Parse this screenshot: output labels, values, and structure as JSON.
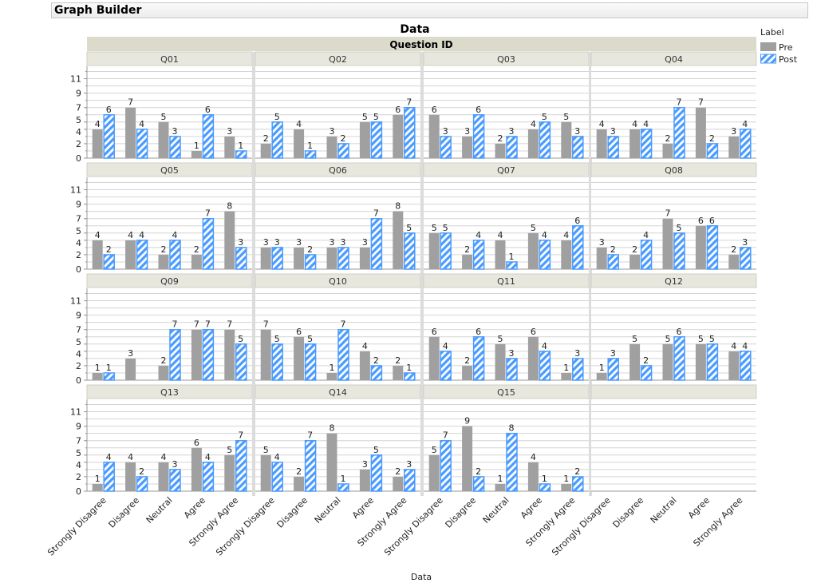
{
  "window": {
    "title": "Graph Builder"
  },
  "chart_data": {
    "type": "bar",
    "title": "Data",
    "group_header": "Question ID",
    "xlabel": "Data",
    "ylabel": "",
    "ylim": [
      0,
      12.5
    ],
    "yticks": [
      0,
      2,
      4,
      5,
      7,
      9,
      11
    ],
    "grid": true,
    "legend": {
      "title": "Label",
      "placement": "top-right",
      "entries": [
        "Pre",
        "Post"
      ]
    },
    "colors": {
      "pre": "#a0a0a0",
      "post": "#4a9bff"
    },
    "categories": [
      "Strongly Disagree",
      "Disagree",
      "Neutral",
      "Agree",
      "Strongly Agree"
    ],
    "panels": [
      {
        "name": "Q01",
        "series": [
          {
            "name": "Pre",
            "values": [
              4,
              7,
              5,
              1,
              3
            ]
          },
          {
            "name": "Post",
            "values": [
              6,
              4,
              3,
              6,
              1
            ]
          }
        ]
      },
      {
        "name": "Q02",
        "series": [
          {
            "name": "Pre",
            "values": [
              2,
              4,
              3,
              5,
              6
            ]
          },
          {
            "name": "Post",
            "values": [
              5,
              1,
              2,
              5,
              7
            ]
          }
        ]
      },
      {
        "name": "Q03",
        "series": [
          {
            "name": "Pre",
            "values": [
              6,
              3,
              2,
              4,
              5
            ]
          },
          {
            "name": "Post",
            "values": [
              3,
              6,
              3,
              5,
              3
            ]
          }
        ]
      },
      {
        "name": "Q04",
        "series": [
          {
            "name": "Pre",
            "values": [
              4,
              4,
              2,
              7,
              3
            ]
          },
          {
            "name": "Post",
            "values": [
              3,
              4,
              7,
              2,
              4
            ]
          }
        ]
      },
      {
        "name": "Q05",
        "series": [
          {
            "name": "Pre",
            "values": [
              4,
              4,
              2,
              2,
              8
            ]
          },
          {
            "name": "Post",
            "values": [
              2,
              4,
              4,
              7,
              3
            ]
          }
        ]
      },
      {
        "name": "Q06",
        "series": [
          {
            "name": "Pre",
            "values": [
              3,
              3,
              3,
              3,
              8
            ]
          },
          {
            "name": "Post",
            "values": [
              3,
              2,
              3,
              7,
              5
            ]
          }
        ]
      },
      {
        "name": "Q07",
        "series": [
          {
            "name": "Pre",
            "values": [
              5,
              2,
              4,
              5,
              4
            ]
          },
          {
            "name": "Post",
            "values": [
              5,
              4,
              1,
              4,
              6
            ]
          }
        ]
      },
      {
        "name": "Q08",
        "series": [
          {
            "name": "Pre",
            "values": [
              3,
              2,
              7,
              6,
              2
            ]
          },
          {
            "name": "Post",
            "values": [
              2,
              4,
              5,
              6,
              3
            ]
          }
        ]
      },
      {
        "name": "Q09",
        "series": [
          {
            "name": "Pre",
            "values": [
              1,
              3,
              2,
              7,
              7
            ]
          },
          {
            "name": "Post",
            "values": [
              1,
              null,
              7,
              7,
              5
            ]
          }
        ]
      },
      {
        "name": "Q10",
        "series": [
          {
            "name": "Pre",
            "values": [
              7,
              6,
              1,
              4,
              2
            ]
          },
          {
            "name": "Post",
            "values": [
              5,
              5,
              7,
              2,
              1
            ]
          }
        ]
      },
      {
        "name": "Q11",
        "series": [
          {
            "name": "Pre",
            "values": [
              6,
              2,
              5,
              6,
              1
            ]
          },
          {
            "name": "Post",
            "values": [
              4,
              6,
              3,
              4,
              3
            ]
          }
        ]
      },
      {
        "name": "Q12",
        "series": [
          {
            "name": "Pre",
            "values": [
              1,
              5,
              5,
              5,
              4
            ]
          },
          {
            "name": "Post",
            "values": [
              3,
              2,
              6,
              5,
              4
            ]
          }
        ]
      },
      {
        "name": "Q13",
        "series": [
          {
            "name": "Pre",
            "values": [
              1,
              4,
              4,
              6,
              5
            ]
          },
          {
            "name": "Post",
            "values": [
              4,
              2,
              3,
              4,
              7
            ]
          }
        ]
      },
      {
        "name": "Q14",
        "series": [
          {
            "name": "Pre",
            "values": [
              5,
              2,
              8,
              3,
              2
            ]
          },
          {
            "name": "Post",
            "values": [
              4,
              7,
              1,
              5,
              3
            ]
          }
        ]
      },
      {
        "name": "Q15",
        "series": [
          {
            "name": "Pre",
            "values": [
              5,
              9,
              1,
              4,
              1
            ]
          },
          {
            "name": "Post",
            "values": [
              7,
              2,
              8,
              1,
              2
            ]
          }
        ]
      },
      {
        "name": "",
        "series": []
      }
    ]
  }
}
